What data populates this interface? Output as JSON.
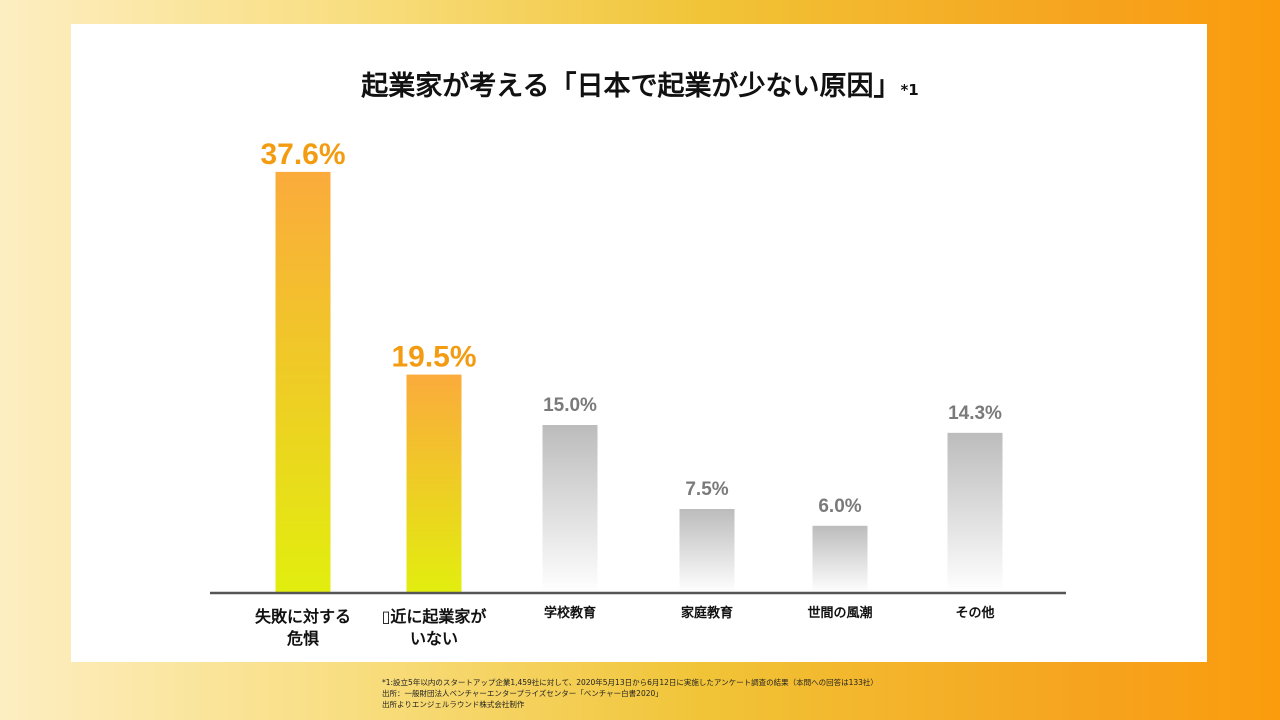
{
  "title": {
    "main": "起業家が考える「日本で起業が少ない原因」",
    "note": "*1"
  },
  "colors": {
    "highlight_text": "#f39c12",
    "gray_text": "#7a7a7a",
    "highlight_bar_top": "#fbab3c",
    "highlight_bar_bottom": "#e2ee0e",
    "gray_bar_top": "#bcbcbc",
    "gray_bar_bottom": "#ffffff",
    "axis": "#555555"
  },
  "chart_data": {
    "type": "bar",
    "title": "起業家が考える「日本で起業が少ない原因」*1",
    "categories": [
      [
        "失敗に対する",
        "危惧"
      ],
      [
        "▯近に起業家が",
        "いない"
      ],
      [
        "学校教育"
      ],
      [
        "家庭教育"
      ],
      [
        "世間の風潮"
      ],
      [
        "その他"
      ]
    ],
    "values": [
      37.6,
      19.5,
      15.0,
      7.5,
      6.0,
      14.3
    ],
    "value_labels": [
      "37.6%",
      "19.5%",
      "15.0%",
      "7.5%",
      "6.0%",
      "14.3%"
    ],
    "highlighted": [
      true,
      true,
      false,
      false,
      false,
      false
    ],
    "unit": "%",
    "ylim": [
      0,
      40
    ],
    "xlabel": "",
    "ylabel": "",
    "grid": false,
    "legend": "none"
  },
  "footer": {
    "lines": [
      "*1:設立5年以内のスタートアップ企業1,459社に対して、2020年5月13日から6月12日に実施したアンケート調査の結果（本問への回答は133社）",
      "出所：一般財団法人ベンチャーエンタープライズセンター「ベンチャー白書2020」",
      "出所よりエンジェルラウンド株式会社制作"
    ]
  }
}
